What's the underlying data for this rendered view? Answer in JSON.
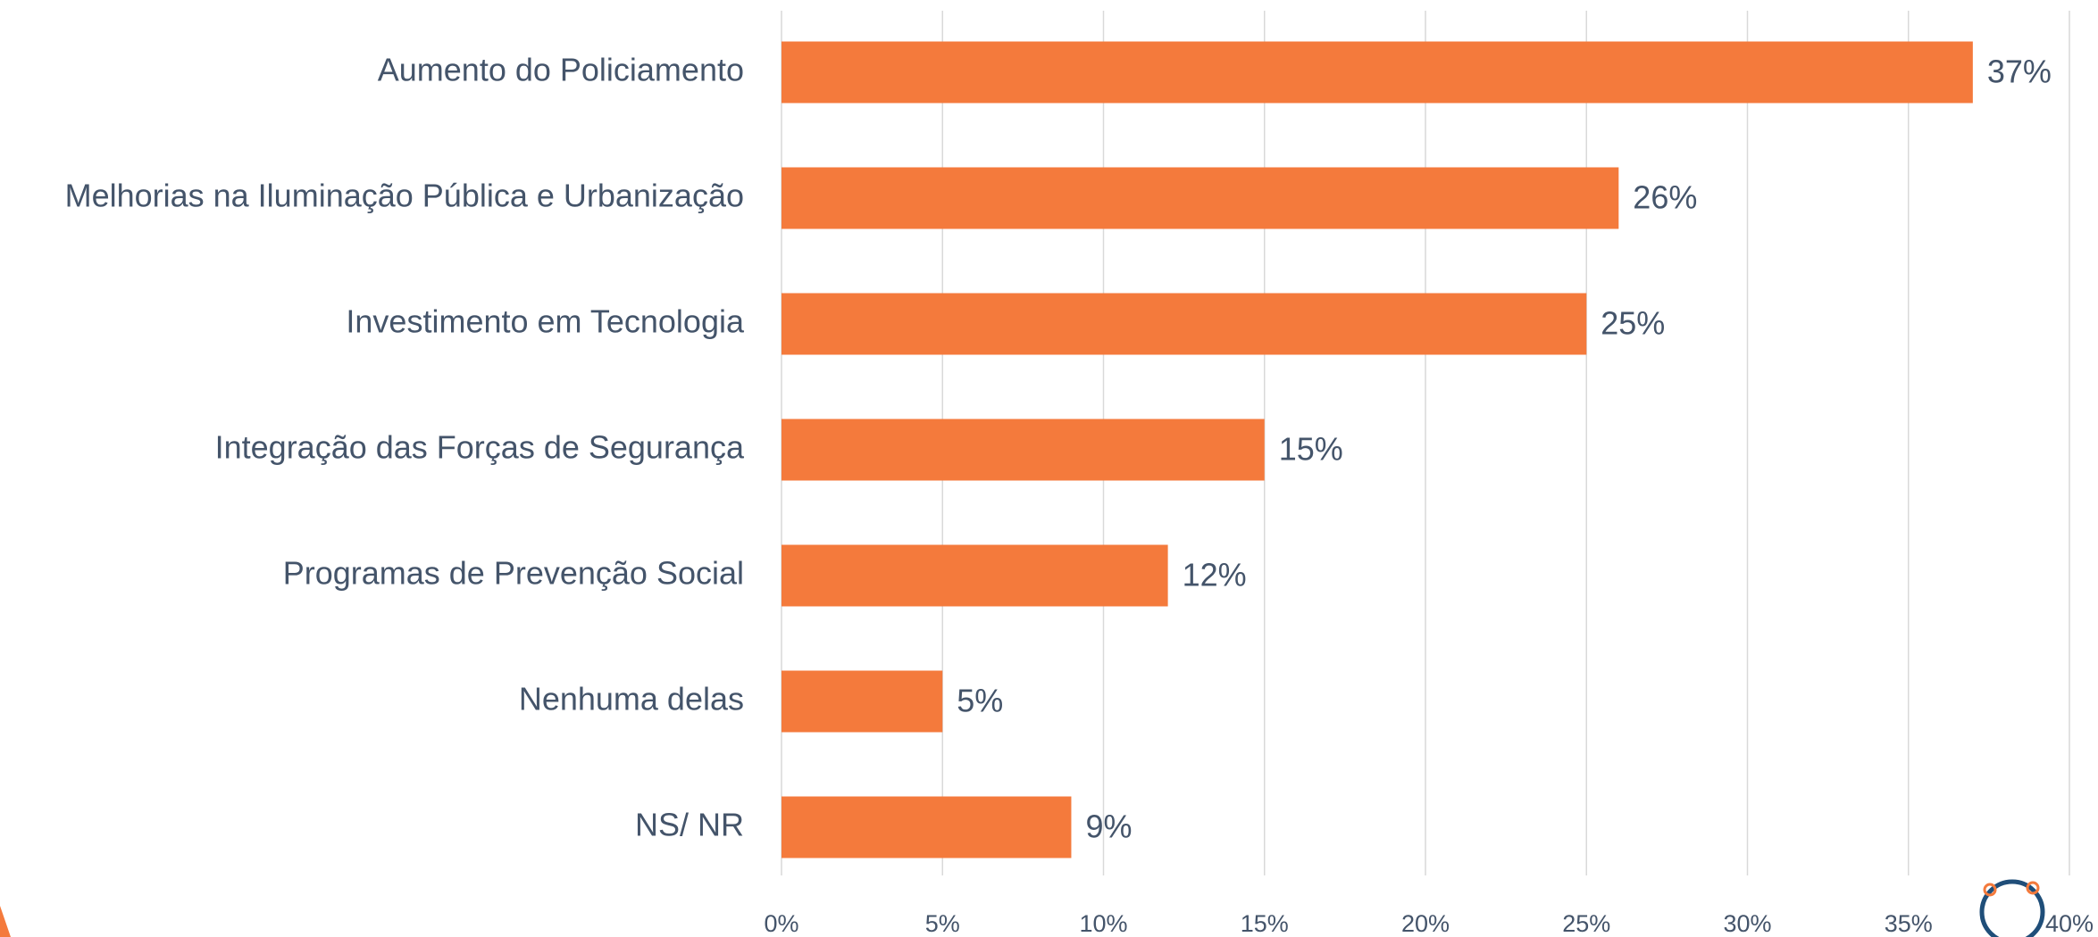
{
  "chart_data": {
    "type": "bar",
    "orientation": "horizontal",
    "categories": [
      "Aumento do Policiamento",
      "Melhorias na Iluminação Pública e Urbanização",
      "Investimento em Tecnologia",
      "Integração das Forças de Segurança",
      "Programas de Prevenção Social",
      "Nenhuma delas",
      "NS/ NR"
    ],
    "values": [
      37,
      26,
      25,
      15,
      12,
      5,
      9
    ],
    "value_labels": [
      "37%",
      "26%",
      "25%",
      "15%",
      "12%",
      "5%",
      "9%"
    ],
    "color": "#f47a3c",
    "xlim": [
      0,
      40
    ],
    "xticks": [
      {
        "value": 0,
        "label": "0%"
      },
      {
        "value": 5,
        "label": "5%"
      },
      {
        "value": 10,
        "label": "10%"
      },
      {
        "value": 15,
        "label": "15%"
      },
      {
        "value": 20,
        "label": "20%"
      },
      {
        "value": 25,
        "label": "25%"
      },
      {
        "value": 30,
        "label": "30%"
      },
      {
        "value": 35,
        "label": "35%"
      },
      {
        "value": 40,
        "label": "40%"
      }
    ],
    "grid": true
  }
}
